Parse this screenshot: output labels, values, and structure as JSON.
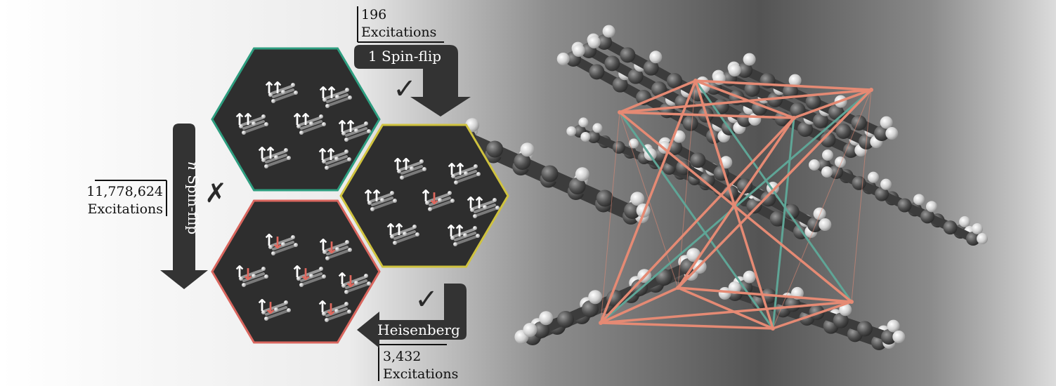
{
  "top_counter": {
    "number": "196",
    "label": "Excitations"
  },
  "left_counter": {
    "number": "11,778,624",
    "label": "Excitations"
  },
  "bottom_counter": {
    "number": "3,432",
    "label": "Excitations"
  },
  "arrows": {
    "one_spin_flip": "1 Spin-flip",
    "n_spin_flip_italic": "n",
    "n_spin_flip_rest": " Spin-flip",
    "heisenberg": "Heisenberg"
  },
  "marks": {
    "check": "✓",
    "cross": "✗"
  },
  "spin_glyphs": {
    "up": "↑",
    "down": "↓"
  },
  "hexagons": [
    {
      "name": "ground-state",
      "border": "#2e9e80",
      "flips": []
    },
    {
      "name": "single-spin-flip",
      "border": "#cfc23e",
      "flips": [
        3
      ]
    },
    {
      "name": "all-spin-flip",
      "border": "#d9665e",
      "flips": [
        0,
        1,
        2,
        3,
        4,
        5,
        6
      ]
    }
  ],
  "colors": {
    "hex_fill": "#2e2e2e",
    "arrow": "#333333",
    "down_spin": "#e0685e",
    "orange_edges": "#e58a74",
    "teal_edges": "#5fa596"
  }
}
